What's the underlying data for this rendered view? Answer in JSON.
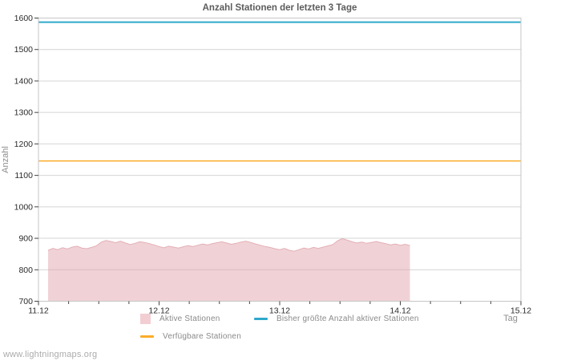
{
  "page": {
    "watermark": "www.lightningmaps.org"
  },
  "chart_data": {
    "type": "area",
    "title": "Anzahl Stationen der letzten 3 Tage",
    "xlabel": "Tag",
    "ylabel": "Anzahl",
    "ylim": [
      700,
      1600
    ],
    "y_ticks": [
      700,
      800,
      900,
      1000,
      1100,
      1200,
      1300,
      1400,
      1500,
      1600
    ],
    "x_tick_labels": [
      "11.12",
      "12.12",
      "13.12",
      "14.12",
      "15.12"
    ],
    "x_minor_per_interval": 3,
    "grid": true,
    "legend_position": "bottom",
    "colors": {
      "grid": "#d4d4d4",
      "border": "#c6c6c6",
      "tick": "#444444",
      "tick_label": "#2b2b2b",
      "title": "#5c5c5c",
      "axis_label": "#8e8e8e",
      "legend_text": "#8a8a8a",
      "watermark": "#ababab"
    },
    "series": [
      {
        "name": "Aktive Stationen",
        "type": "area",
        "fill": "#e2a5ad",
        "fill_opacity": 0.5,
        "edge_color": "#e3afb6",
        "legend_color": "#f2ced3",
        "x_start_day": 0.08,
        "x_step_day": 0.04,
        "values": [
          862,
          868,
          864,
          870,
          866,
          872,
          875,
          869,
          867,
          871,
          876,
          888,
          893,
          890,
          886,
          891,
          885,
          880,
          884,
          889,
          887,
          883,
          879,
          874,
          870,
          875,
          872,
          869,
          873,
          877,
          874,
          878,
          882,
          879,
          883,
          886,
          889,
          885,
          881,
          884,
          888,
          891,
          887,
          882,
          878,
          874,
          871,
          867,
          864,
          868,
          862,
          859,
          864,
          869,
          866,
          871,
          868,
          872,
          876,
          880,
          892,
          899,
          894,
          889,
          885,
          888,
          884,
          887,
          890,
          886,
          883,
          879,
          882,
          878,
          881,
          877
        ]
      },
      {
        "name": "Bisher größte Anzahl aktiver Stationen",
        "type": "line",
        "color": "#2fa9cb",
        "legend_color": "#2fa9cb",
        "value": 1587,
        "x_span_days": [
          0,
          4
        ],
        "stroke_width": 2
      },
      {
        "name": "Verfügbare Stationen",
        "type": "line",
        "color": "#fbac29",
        "legend_color": "#fbac29",
        "value": 1146,
        "x_span_days": [
          0,
          4
        ],
        "stroke_width": 1.5
      }
    ]
  }
}
